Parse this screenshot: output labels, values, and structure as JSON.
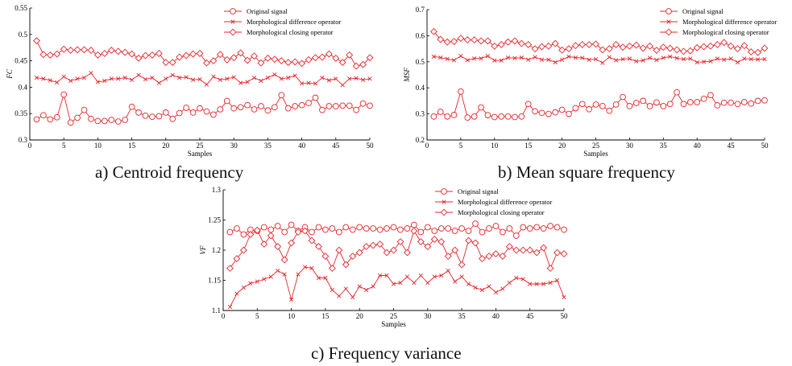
{
  "series_color": "#e8262c",
  "chart_data": [
    {
      "type": "line",
      "caption": "a) Centroid frequency",
      "xlabel": "Samples",
      "ylabel": "FC",
      "xlim": [
        0,
        50
      ],
      "ylim": [
        0.3,
        0.55
      ],
      "xticks": [
        0,
        5,
        10,
        15,
        20,
        25,
        30,
        35,
        40,
        45,
        50
      ],
      "yticks": [
        0.3,
        0.35,
        0.4,
        0.45,
        0.5,
        0.55
      ],
      "ytick_labels": [
        "0.3",
        "0.35",
        "0.4",
        "0.45",
        "0.5",
        "0.55"
      ],
      "legend_position": "top-right",
      "x": [
        1,
        2,
        3,
        4,
        5,
        6,
        7,
        8,
        9,
        10,
        11,
        12,
        13,
        14,
        15,
        16,
        17,
        18,
        19,
        20,
        21,
        22,
        23,
        24,
        25,
        26,
        27,
        28,
        29,
        30,
        31,
        32,
        33,
        34,
        35,
        36,
        37,
        38,
        39,
        40,
        41,
        42,
        43,
        44,
        45,
        46,
        47,
        48,
        49,
        50
      ],
      "series": [
        {
          "name": "Original signal",
          "marker": "circle",
          "values": [
            0.339,
            0.347,
            0.339,
            0.343,
            0.386,
            0.333,
            0.342,
            0.357,
            0.34,
            0.336,
            0.336,
            0.338,
            0.335,
            0.338,
            0.363,
            0.352,
            0.346,
            0.344,
            0.345,
            0.352,
            0.34,
            0.351,
            0.361,
            0.352,
            0.36,
            0.354,
            0.348,
            0.358,
            0.374,
            0.36,
            0.362,
            0.366,
            0.358,
            0.364,
            0.356,
            0.362,
            0.385,
            0.36,
            0.364,
            0.366,
            0.37,
            0.38,
            0.357,
            0.364,
            0.364,
            0.365,
            0.365,
            0.357,
            0.369,
            0.365
          ]
        },
        {
          "name": "Morphological difference operator",
          "marker": "x",
          "values": [
            0.418,
            0.416,
            0.413,
            0.409,
            0.42,
            0.412,
            0.416,
            0.418,
            0.427,
            0.41,
            0.412,
            0.416,
            0.416,
            0.418,
            0.414,
            0.423,
            0.415,
            0.418,
            0.408,
            0.416,
            0.423,
            0.418,
            0.419,
            0.414,
            0.415,
            0.405,
            0.42,
            0.414,
            0.416,
            0.419,
            0.408,
            0.41,
            0.418,
            0.412,
            0.418,
            0.424,
            0.416,
            0.418,
            0.422,
            0.407,
            0.408,
            0.407,
            0.418,
            0.413,
            0.416,
            0.404,
            0.416,
            0.417,
            0.414,
            0.416
          ]
        },
        {
          "name": "Morphological closing operator",
          "marker": "diamond",
          "values": [
            0.488,
            0.462,
            0.461,
            0.463,
            0.472,
            0.47,
            0.471,
            0.471,
            0.47,
            0.461,
            0.464,
            0.47,
            0.468,
            0.466,
            0.463,
            0.455,
            0.46,
            0.461,
            0.464,
            0.447,
            0.447,
            0.457,
            0.46,
            0.463,
            0.464,
            0.446,
            0.45,
            0.462,
            0.452,
            0.456,
            0.465,
            0.451,
            0.459,
            0.446,
            0.455,
            0.453,
            0.45,
            0.447,
            0.448,
            0.445,
            0.452,
            0.456,
            0.457,
            0.463,
            0.455,
            0.447,
            0.461,
            0.44,
            0.443,
            0.456
          ]
        }
      ]
    },
    {
      "type": "line",
      "caption": "b) Mean square frequency",
      "xlabel": "Samples",
      "ylabel": "MSF",
      "xlim": [
        0,
        50
      ],
      "ylim": [
        0.2,
        0.7
      ],
      "xticks": [
        0,
        5,
        10,
        15,
        20,
        25,
        30,
        35,
        40,
        45,
        50
      ],
      "yticks": [
        0.2,
        0.3,
        0.4,
        0.5,
        0.6,
        0.7
      ],
      "ytick_labels": [
        "0.2",
        "0.3",
        "0.4",
        "0.5",
        "0.6",
        "0.7"
      ],
      "legend_position": "top-right",
      "x": [
        1,
        2,
        3,
        4,
        5,
        6,
        7,
        8,
        9,
        10,
        11,
        12,
        13,
        14,
        15,
        16,
        17,
        18,
        19,
        20,
        21,
        22,
        23,
        24,
        25,
        26,
        27,
        28,
        29,
        30,
        31,
        32,
        33,
        34,
        35,
        36,
        37,
        38,
        39,
        40,
        41,
        42,
        43,
        44,
        45,
        46,
        47,
        48,
        49,
        50
      ],
      "series": [
        {
          "name": "Original signal",
          "marker": "circle",
          "values": [
            0.29,
            0.308,
            0.29,
            0.296,
            0.386,
            0.286,
            0.29,
            0.325,
            0.295,
            0.288,
            0.29,
            0.29,
            0.288,
            0.29,
            0.338,
            0.31,
            0.304,
            0.3,
            0.306,
            0.316,
            0.3,
            0.322,
            0.338,
            0.318,
            0.336,
            0.33,
            0.312,
            0.336,
            0.365,
            0.33,
            0.342,
            0.35,
            0.33,
            0.344,
            0.33,
            0.338,
            0.383,
            0.338,
            0.345,
            0.345,
            0.358,
            0.372,
            0.333,
            0.343,
            0.343,
            0.338,
            0.345,
            0.34,
            0.35,
            0.352
          ]
        },
        {
          "name": "Morphological difference operator",
          "marker": "x",
          "values": [
            0.52,
            0.516,
            0.511,
            0.506,
            0.522,
            0.506,
            0.513,
            0.513,
            0.522,
            0.505,
            0.505,
            0.516,
            0.514,
            0.516,
            0.508,
            0.518,
            0.508,
            0.508,
            0.498,
            0.508,
            0.52,
            0.516,
            0.515,
            0.508,
            0.51,
            0.496,
            0.518,
            0.506,
            0.51,
            0.512,
            0.502,
            0.505,
            0.515,
            0.507,
            0.515,
            0.52,
            0.514,
            0.51,
            0.512,
            0.498,
            0.5,
            0.502,
            0.512,
            0.508,
            0.512,
            0.498,
            0.512,
            0.51,
            0.509,
            0.51
          ]
        },
        {
          "name": "Morphological closing operator",
          "marker": "diamond",
          "values": [
            0.616,
            0.586,
            0.576,
            0.578,
            0.59,
            0.584,
            0.584,
            0.58,
            0.58,
            0.56,
            0.566,
            0.576,
            0.58,
            0.57,
            0.566,
            0.55,
            0.558,
            0.56,
            0.57,
            0.545,
            0.55,
            0.562,
            0.566,
            0.566,
            0.568,
            0.546,
            0.55,
            0.566,
            0.556,
            0.56,
            0.564,
            0.552,
            0.56,
            0.544,
            0.556,
            0.552,
            0.546,
            0.54,
            0.542,
            0.554,
            0.558,
            0.56,
            0.566,
            0.574,
            0.56,
            0.55,
            0.562,
            0.538,
            0.536,
            0.552
          ]
        }
      ]
    },
    {
      "type": "line",
      "caption": "c) Frequency variance",
      "xlabel": "Samples",
      "ylabel": "VF",
      "xlim": [
        0,
        50
      ],
      "ylim": [
        1.1,
        1.3
      ],
      "xticks": [
        0,
        5,
        10,
        15,
        20,
        25,
        30,
        35,
        40,
        45,
        50
      ],
      "yticks": [
        1.1,
        1.15,
        1.2,
        1.25,
        1.3
      ],
      "ytick_labels": [
        "1.1",
        "1.15",
        "1.2",
        "1.25",
        "1.3"
      ],
      "legend_position": "top-right",
      "x": [
        1,
        2,
        3,
        4,
        5,
        6,
        7,
        8,
        9,
        10,
        11,
        12,
        13,
        14,
        15,
        16,
        17,
        18,
        19,
        20,
        21,
        22,
        23,
        24,
        25,
        26,
        27,
        28,
        29,
        30,
        31,
        32,
        33,
        34,
        35,
        36,
        37,
        38,
        39,
        40,
        41,
        42,
        43,
        44,
        45,
        46,
        47,
        48,
        49,
        50
      ],
      "series": [
        {
          "name": "Original signal",
          "marker": "circle",
          "values": [
            1.23,
            1.236,
            1.226,
            1.234,
            1.232,
            1.238,
            1.234,
            1.24,
            1.23,
            1.242,
            1.232,
            1.238,
            1.23,
            1.238,
            1.234,
            1.236,
            1.23,
            1.238,
            1.234,
            1.238,
            1.236,
            1.236,
            1.234,
            1.236,
            1.238,
            1.234,
            1.236,
            1.242,
            1.23,
            1.238,
            1.232,
            1.236,
            1.236,
            1.232,
            1.236,
            1.232,
            1.244,
            1.23,
            1.236,
            1.24,
            1.23,
            1.236,
            1.224,
            1.238,
            1.236,
            1.238,
            1.236,
            1.24,
            1.238,
            1.234
          ]
        },
        {
          "name": "Morphological difference operator",
          "marker": "x",
          "values": [
            1.106,
            1.128,
            1.138,
            1.145,
            1.148,
            1.152,
            1.156,
            1.166,
            1.16,
            1.118,
            1.16,
            1.172,
            1.17,
            1.154,
            1.154,
            1.134,
            1.124,
            1.136,
            1.122,
            1.14,
            1.134,
            1.14,
            1.158,
            1.158,
            1.144,
            1.146,
            1.156,
            1.146,
            1.158,
            1.146,
            1.156,
            1.158,
            1.166,
            1.148,
            1.156,
            1.144,
            1.138,
            1.134,
            1.14,
            1.13,
            1.136,
            1.146,
            1.154,
            1.152,
            1.144,
            1.144,
            1.144,
            1.146,
            1.15,
            1.122
          ]
        },
        {
          "name": "Morphological closing operator",
          "marker": "diamond",
          "values": [
            1.17,
            1.186,
            1.2,
            1.226,
            1.233,
            1.21,
            1.224,
            1.206,
            1.184,
            1.212,
            1.23,
            1.232,
            1.216,
            1.206,
            1.19,
            1.17,
            1.2,
            1.176,
            1.19,
            1.196,
            1.206,
            1.208,
            1.21,
            1.196,
            1.2,
            1.214,
            1.196,
            1.232,
            1.214,
            1.206,
            1.218,
            1.214,
            1.19,
            1.2,
            1.176,
            1.216,
            1.212,
            1.186,
            1.19,
            1.194,
            1.19,
            1.206,
            1.2,
            1.2,
            1.2,
            1.196,
            1.204,
            1.17,
            1.196,
            1.194
          ]
        }
      ]
    }
  ]
}
